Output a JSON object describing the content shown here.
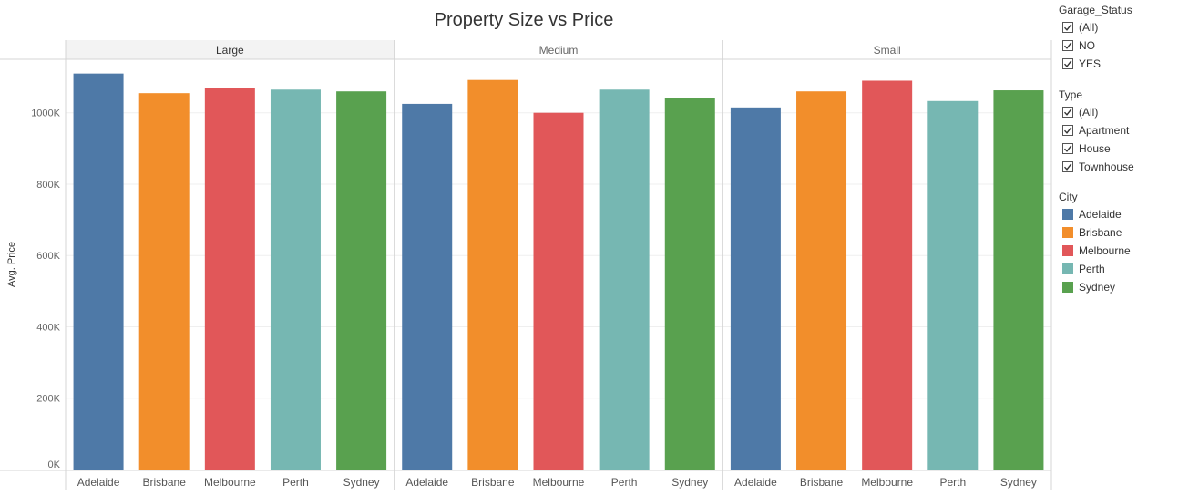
{
  "chart_data": {
    "type": "bar",
    "title": "Property Size vs Price",
    "ylabel": "Avg. Price",
    "ylim": [
      0,
      1150000
    ],
    "yticks": [
      0,
      200000,
      400000,
      600000,
      800000,
      1000000
    ],
    "ytick_labels": [
      "0K",
      "200K",
      "400K",
      "600K",
      "800K",
      "1000K"
    ],
    "panels": [
      {
        "label": "Large",
        "categories": [
          "Adelaide",
          "Brisbane",
          "Melbourne",
          "Perth",
          "Sydney"
        ],
        "values": [
          1110000,
          1055000,
          1070000,
          1065000,
          1060000
        ]
      },
      {
        "label": "Medium",
        "categories": [
          "Adelaide",
          "Brisbane",
          "Melbourne",
          "Perth",
          "Sydney"
        ],
        "values": [
          1025000,
          1092000,
          1000000,
          1065000,
          1042000
        ]
      },
      {
        "label": "Small",
        "categories": [
          "Adelaide",
          "Brisbane",
          "Melbourne",
          "Perth",
          "Sydney"
        ],
        "values": [
          1015000,
          1060000,
          1090000,
          1033000,
          1063000
        ]
      }
    ],
    "colors": {
      "Adelaide": "#4e79a7",
      "Brisbane": "#f28e2b",
      "Melbourne": "#e15759",
      "Perth": "#76b7b2",
      "Sydney": "#59a14f"
    },
    "legend": "right"
  },
  "filters": {
    "garage": {
      "title": "Garage_Status",
      "items": [
        "(All)",
        "NO",
        "YES"
      ]
    },
    "type": {
      "title": "Type",
      "items": [
        "(All)",
        "Apartment",
        "House",
        "Townhouse"
      ]
    }
  },
  "city_legend": {
    "title": "City",
    "items": [
      {
        "label": "Adelaide",
        "color": "#4e79a7"
      },
      {
        "label": "Brisbane",
        "color": "#f28e2b"
      },
      {
        "label": "Melbourne",
        "color": "#e15759"
      },
      {
        "label": "Perth",
        "color": "#76b7b2"
      },
      {
        "label": "Sydney",
        "color": "#59a14f"
      }
    ]
  }
}
